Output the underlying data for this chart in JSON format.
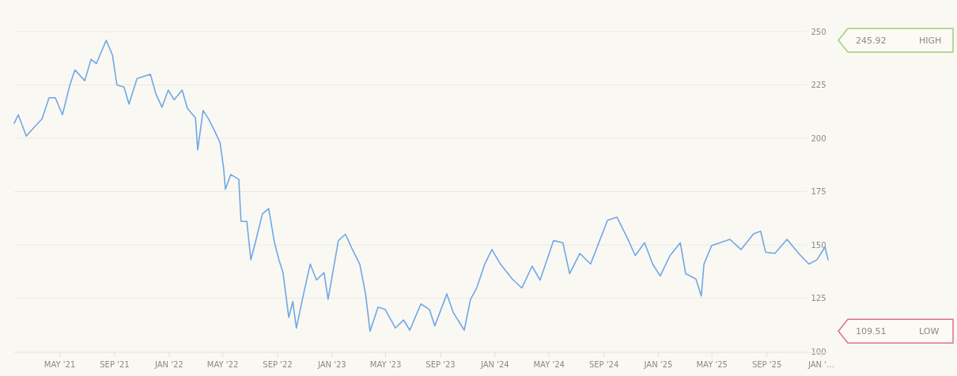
{
  "chart_data": {
    "type": "line",
    "grid": "y",
    "marker": "none",
    "line_style": "solid",
    "xlim": [
      "2021-01-20",
      "2026-01-17"
    ],
    "ylim": [
      100,
      250
    ],
    "yticks": [
      100,
      125,
      150,
      175,
      200,
      225,
      250
    ],
    "xticks": [
      {
        "value": "2021-05-01",
        "label": "MAY '21"
      },
      {
        "value": "2021-09-01",
        "label": "SEP '21"
      },
      {
        "value": "2022-01-01",
        "label": "JAN '22"
      },
      {
        "value": "2022-05-01",
        "label": "MAY '22"
      },
      {
        "value": "2022-09-01",
        "label": "SEP '22"
      },
      {
        "value": "2023-01-01",
        "label": "JAN '23"
      },
      {
        "value": "2023-05-01",
        "label": "MAY '23"
      },
      {
        "value": "2023-09-01",
        "label": "SEP '23"
      },
      {
        "value": "2024-01-01",
        "label": "JAN '24"
      },
      {
        "value": "2024-05-01",
        "label": "MAY '24"
      },
      {
        "value": "2024-09-01",
        "label": "SEP '24"
      },
      {
        "value": "2025-01-01",
        "label": "JAN '25"
      },
      {
        "value": "2025-05-01",
        "label": "MAY '25"
      },
      {
        "value": "2025-09-01",
        "label": "SEP '25"
      },
      {
        "value": "2026-01-01",
        "label": "JAN '…"
      }
    ],
    "annotations": [
      "245.92 HIGH",
      "109.51 LOW"
    ],
    "series": [
      {
        "color": "#6fa8e6",
        "x": [
          "2021-01-20",
          "2021-01-29",
          "2021-02-16",
          "2021-03-05",
          "2021-03-23",
          "2021-04-08",
          "2021-04-22",
          "2021-05-08",
          "2021-05-24",
          "2021-06-05",
          "2021-06-27",
          "2021-07-11",
          "2021-07-23",
          "2021-08-14",
          "2021-08-28",
          "2021-09-07",
          "2021-09-23",
          "2021-10-04",
          "2021-10-22",
          "2021-11-21",
          "2021-12-03",
          "2021-12-17",
          "2021-12-31",
          "2022-01-13",
          "2022-01-31",
          "2022-02-12",
          "2022-03-02",
          "2022-03-07",
          "2022-03-19",
          "2022-03-30",
          "2022-04-11",
          "2022-04-26",
          "2022-05-04",
          "2022-05-08",
          "2022-05-20",
          "2022-06-07",
          "2022-06-12",
          "2022-06-25",
          "2022-07-04",
          "2022-07-14",
          "2022-07-30",
          "2022-08-13",
          "2022-08-26",
          "2022-09-05",
          "2022-09-14",
          "2022-09-27",
          "2022-10-06",
          "2022-10-14",
          "2022-10-29",
          "2022-11-14",
          "2022-11-28",
          "2022-12-15",
          "2022-12-24",
          "2023-01-16",
          "2023-02-01",
          "2023-02-15",
          "2023-03-05",
          "2023-03-18",
          "2023-03-28",
          "2023-04-15",
          "2023-05-01",
          "2023-05-24",
          "2023-06-11",
          "2023-06-25",
          "2023-07-20",
          "2023-08-08",
          "2023-08-20",
          "2023-09-16",
          "2023-09-30",
          "2023-10-25",
          "2023-11-08",
          "2023-11-22",
          "2023-12-10",
          "2023-12-26",
          "2024-01-14",
          "2024-02-10",
          "2024-03-02",
          "2024-03-25",
          "2024-04-12",
          "2024-05-12",
          "2024-06-02",
          "2024-06-17",
          "2024-07-10",
          "2024-08-03",
          "2024-09-10",
          "2024-10-01",
          "2024-10-24",
          "2024-11-11",
          "2024-12-02",
          "2024-12-20",
          "2025-01-06",
          "2025-01-28",
          "2025-02-20",
          "2025-03-04",
          "2025-03-27",
          "2025-04-08",
          "2025-04-14",
          "2025-05-01",
          "2025-06-11",
          "2025-07-06",
          "2025-08-03",
          "2025-08-19",
          "2025-08-30",
          "2025-09-20",
          "2025-10-17",
          "2025-11-12",
          "2025-12-05",
          "2025-12-23",
          "2026-01-10",
          "2026-01-17"
        ],
        "values": [
          207,
          211,
          201,
          205,
          209,
          219,
          219,
          211,
          224.5,
          232,
          227,
          237,
          235,
          245.92,
          239,
          225,
          224,
          216,
          228,
          230,
          221,
          214.5,
          222.6,
          218,
          222.6,
          214,
          209.5,
          194.6,
          213,
          209.5,
          204.7,
          198,
          186,
          176,
          183,
          180.7,
          161,
          161,
          143,
          151,
          164.6,
          167,
          151,
          143,
          137,
          116,
          123.4,
          111,
          126,
          141,
          133.5,
          137,
          124.5,
          152,
          155,
          148.5,
          141,
          127,
          109.51,
          120.8,
          119.7,
          111,
          114.8,
          110,
          122.3,
          119.7,
          112,
          127,
          118.5,
          110,
          124.5,
          129.8,
          141,
          147.8,
          141,
          133.9,
          129.8,
          140,
          133.5,
          152,
          151,
          136.5,
          146,
          141,
          161.6,
          163,
          153.4,
          145,
          151,
          141,
          135.4,
          145,
          151,
          136.5,
          134,
          126,
          141,
          149.6,
          152.6,
          147.8,
          155.2,
          156.4,
          146.6,
          146,
          152.6,
          146,
          141,
          143,
          149,
          143
        ]
      }
    ]
  }
}
